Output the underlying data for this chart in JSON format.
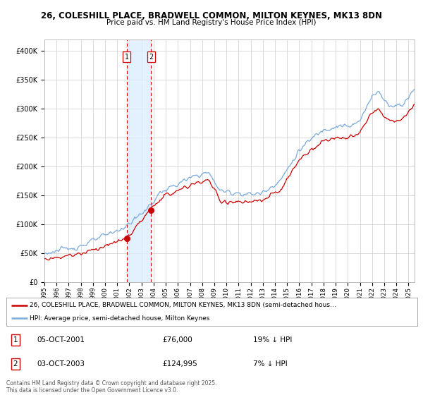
{
  "title1": "26, COLESHILL PLACE, BRADWELL COMMON, MILTON KEYNES, MK13 8DN",
  "title2": "Price paid vs. HM Land Registry's House Price Index (HPI)",
  "background_color": "#ffffff",
  "plot_bg_color": "#ffffff",
  "grid_color": "#cccccc",
  "purchase1_price": 76000,
  "purchase2_price": 124995,
  "legend_entry1": "26, COLESHILL PLACE, BRADWELL COMMON, MILTON KEYNES, MK13 8DN (semi-detached hous…",
  "legend_entry2": "HPI: Average price, semi-detached house, Milton Keynes",
  "table_row1": [
    "1",
    "05-OCT-2001",
    "£76,000",
    "19% ↓ HPI"
  ],
  "table_row2": [
    "2",
    "03-OCT-2003",
    "£124,995",
    "7% ↓ HPI"
  ],
  "footer": "Contains HM Land Registry data © Crown copyright and database right 2025.\nThis data is licensed under the Open Government Licence v3.0.",
  "hpi_color": "#7aaadc",
  "price_color": "#cc0000",
  "vline_color": "#cc0000",
  "vfill_color": "#ddeeff",
  "ylim": [
    0,
    420000
  ],
  "yticks": [
    0,
    50000,
    100000,
    150000,
    200000,
    250000,
    300000,
    350000,
    400000
  ],
  "xmin": 1995.0,
  "xmax": 2025.5
}
